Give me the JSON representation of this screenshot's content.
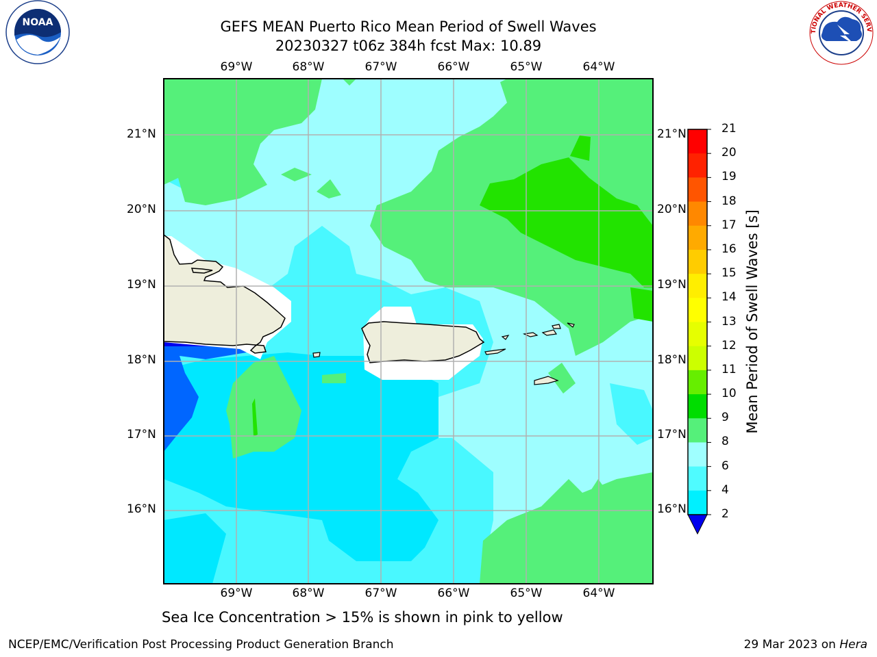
{
  "title": "GEFS MEAN Puerto Rico Mean Period of Swell Waves",
  "subtitle": "20230327 t06z 384h fcst   Max: 10.89",
  "map": {
    "lon_labels": [
      "69°W",
      "68°W",
      "67°W",
      "66°W",
      "65°W",
      "64°W"
    ],
    "lat_labels": [
      "21°N",
      "20°N",
      "19°N",
      "18°N",
      "17°N",
      "16°N"
    ]
  },
  "colorbar": {
    "title": "Mean Period of Swell Waves [s]",
    "ticks": [
      "21",
      "20",
      "19",
      "18",
      "17",
      "16",
      "15",
      "14",
      "13",
      "12",
      "11",
      "10",
      "9",
      "8",
      "6",
      "4",
      "2"
    ],
    "colors": [
      "#ff0000",
      "#ff2200",
      "#ff5500",
      "#ff8800",
      "#ffaa00",
      "#ffcc00",
      "#ffee00",
      "#ffff00",
      "#e6ff00",
      "#ccff00",
      "#66ee00",
      "#00dd00",
      "#55f07a",
      "#9fffff",
      "#4ffbff",
      "#00f0ff",
      "#00ccff",
      "#0088ff"
    ],
    "extend_color": "#0000ee"
  },
  "colors": {
    "land": "#eeeedc",
    "grid": "#b0b0b0",
    "swell_2_4": "#0066ff",
    "swell_4_6": "#00e8ff",
    "swell_6_8": "#49f8ff",
    "swell_8_9": "#9efeff",
    "swell_9_10": "#55f07a",
    "swell_10_11": "#22e300"
  },
  "footer": {
    "note": "Sea Ice Concentration > 15% is shown in pink to yellow",
    "left": "NCEP/EMC/Verification Post Processing Product Generation Branch",
    "right_date": "29 Mar 2023 on ",
    "right_machine": "Hera"
  },
  "logos": {
    "noaa": "NOAA",
    "nws": "NATIONAL WEATHER SERVICE"
  }
}
